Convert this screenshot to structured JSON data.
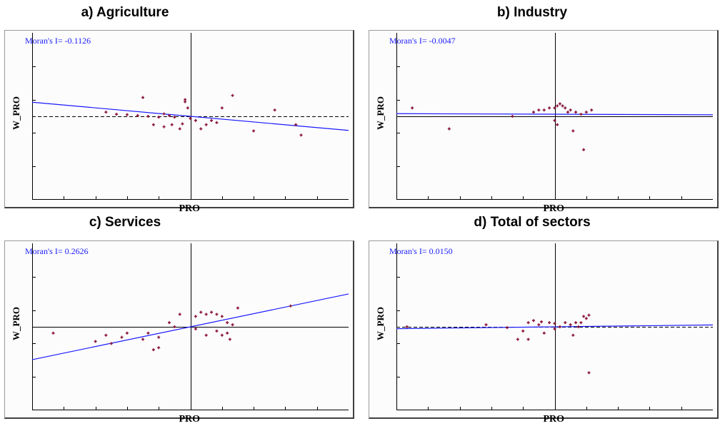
{
  "chart_data": [
    {
      "type": "scatter",
      "title": "a) Agriculture",
      "annotation": "Moran's I= -0.1126",
      "xlabel": "PRO",
      "ylabel": "W_PRO",
      "xlim": [
        -3,
        3
      ],
      "ylim": [
        -2,
        2
      ],
      "moran_i": -0.1126,
      "regression": {
        "slope": -0.1126,
        "intercept": 0
      },
      "points": [
        {
          "x": -1.6,
          "y": 0.1
        },
        {
          "x": -1.4,
          "y": 0.05
        },
        {
          "x": -1.2,
          "y": 0.04
        },
        {
          "x": -1.0,
          "y": 0.02
        },
        {
          "x": -0.9,
          "y": 0.45
        },
        {
          "x": -0.8,
          "y": 0.0
        },
        {
          "x": -0.6,
          "y": -0.02
        },
        {
          "x": -0.5,
          "y": 0.06
        },
        {
          "x": -0.4,
          "y": 0.02
        },
        {
          "x": -0.3,
          "y": -0.02
        },
        {
          "x": -0.7,
          "y": -0.2
        },
        {
          "x": -0.5,
          "y": -0.25
        },
        {
          "x": -0.35,
          "y": -0.2
        },
        {
          "x": -0.2,
          "y": -0.3
        },
        {
          "x": -0.15,
          "y": -0.18
        },
        {
          "x": -0.1,
          "y": 0.35
        },
        {
          "x": -0.1,
          "y": 0.4
        },
        {
          "x": -0.05,
          "y": 0.2
        },
        {
          "x": 0.1,
          "y": -0.1
        },
        {
          "x": 0.2,
          "y": -0.3
        },
        {
          "x": 0.3,
          "y": -0.2
        },
        {
          "x": 0.4,
          "y": -0.1
        },
        {
          "x": 0.5,
          "y": -0.15
        },
        {
          "x": 0.6,
          "y": 0.2
        },
        {
          "x": 0.8,
          "y": 0.5
        },
        {
          "x": 1.2,
          "y": -0.35
        },
        {
          "x": 1.6,
          "y": 0.15
        },
        {
          "x": 2.0,
          "y": -0.2
        },
        {
          "x": 2.1,
          "y": -0.45
        },
        {
          "x": 0.0,
          "y": -0.05
        }
      ]
    },
    {
      "type": "scatter",
      "title": "b) Industry",
      "annotation": "Moran's I= -0.0047",
      "xlabel": "PRO",
      "ylabel": "W_PRO",
      "xlim": [
        -3,
        3
      ],
      "ylim": [
        -2,
        2
      ],
      "moran_i": -0.0047,
      "regression": {
        "slope": -0.0047,
        "intercept": 0.05
      },
      "points": [
        {
          "x": -2.7,
          "y": 0.2
        },
        {
          "x": -2.0,
          "y": -0.3
        },
        {
          "x": -0.8,
          "y": 0.0
        },
        {
          "x": -0.4,
          "y": 0.1
        },
        {
          "x": -0.3,
          "y": 0.15
        },
        {
          "x": -0.2,
          "y": 0.15
        },
        {
          "x": -0.1,
          "y": 0.2
        },
        {
          "x": 0.0,
          "y": 0.2
        },
        {
          "x": 0.05,
          "y": 0.25
        },
        {
          "x": 0.1,
          "y": 0.3
        },
        {
          "x": 0.15,
          "y": 0.25
        },
        {
          "x": 0.2,
          "y": 0.2
        },
        {
          "x": 0.25,
          "y": 0.1
        },
        {
          "x": 0.3,
          "y": 0.15
        },
        {
          "x": 0.4,
          "y": 0.1
        },
        {
          "x": 0.5,
          "y": 0.05
        },
        {
          "x": 0.6,
          "y": 0.1
        },
        {
          "x": 0.7,
          "y": 0.15
        },
        {
          "x": 0.0,
          "y": -0.1
        },
        {
          "x": 0.05,
          "y": -0.2
        },
        {
          "x": 0.35,
          "y": -0.35
        },
        {
          "x": 0.55,
          "y": -0.8
        }
      ]
    },
    {
      "type": "scatter",
      "title": "c) Services",
      "annotation": "Moran's I= 0.2626",
      "xlabel": "PRO",
      "ylabel": "W_PRO",
      "xlim": [
        -3,
        3
      ],
      "ylim": [
        -2,
        2
      ],
      "moran_i": 0.2626,
      "regression": {
        "slope": 0.2626,
        "intercept": 0
      },
      "points": [
        {
          "x": -2.6,
          "y": -0.15
        },
        {
          "x": -1.8,
          "y": -0.35
        },
        {
          "x": -1.6,
          "y": -0.2
        },
        {
          "x": -1.3,
          "y": -0.25
        },
        {
          "x": -1.5,
          "y": -0.4
        },
        {
          "x": -1.2,
          "y": -0.15
        },
        {
          "x": -0.8,
          "y": -0.15
        },
        {
          "x": -0.6,
          "y": -0.25
        },
        {
          "x": -0.7,
          "y": -0.55
        },
        {
          "x": -0.6,
          "y": -0.5
        },
        {
          "x": -0.9,
          "y": -0.3
        },
        {
          "x": -0.4,
          "y": 0.1
        },
        {
          "x": -0.3,
          "y": 0.0
        },
        {
          "x": -0.2,
          "y": 0.3
        },
        {
          "x": 0.1,
          "y": 0.25
        },
        {
          "x": 0.2,
          "y": 0.35
        },
        {
          "x": 0.3,
          "y": 0.3
        },
        {
          "x": 0.4,
          "y": 0.35
        },
        {
          "x": 0.5,
          "y": 0.3
        },
        {
          "x": 0.6,
          "y": 0.25
        },
        {
          "x": 0.7,
          "y": 0.1
        },
        {
          "x": 0.8,
          "y": 0.05
        },
        {
          "x": 0.9,
          "y": 0.45
        },
        {
          "x": 0.5,
          "y": -0.1
        },
        {
          "x": 0.6,
          "y": -0.2
        },
        {
          "x": 0.7,
          "y": -0.15
        },
        {
          "x": 0.75,
          "y": -0.3
        },
        {
          "x": 0.3,
          "y": -0.2
        },
        {
          "x": 0.1,
          "y": -0.05
        },
        {
          "x": 1.9,
          "y": 0.5
        }
      ]
    },
    {
      "type": "scatter",
      "title": "d) Total of sectors",
      "annotation": "Moran's I= 0.0150",
      "xlabel": "PRO",
      "ylabel": "W_PRO",
      "xlim": [
        -3,
        3
      ],
      "ylim": [
        -2,
        2
      ],
      "moran_i": 0.015,
      "regression": {
        "slope": 0.015,
        "intercept": 0
      },
      "points": [
        {
          "x": -2.8,
          "y": 0.0
        },
        {
          "x": -1.3,
          "y": 0.05
        },
        {
          "x": -0.9,
          "y": -0.02
        },
        {
          "x": -0.5,
          "y": 0.1
        },
        {
          "x": -0.4,
          "y": 0.15
        },
        {
          "x": -0.3,
          "y": 0.05
        },
        {
          "x": -0.25,
          "y": 0.12
        },
        {
          "x": -0.1,
          "y": 0.1
        },
        {
          "x": 0.0,
          "y": 0.08
        },
        {
          "x": 0.1,
          "y": 0.0
        },
        {
          "x": 0.2,
          "y": 0.1
        },
        {
          "x": 0.3,
          "y": 0.05
        },
        {
          "x": 0.4,
          "y": 0.1
        },
        {
          "x": 0.5,
          "y": 0.1
        },
        {
          "x": 0.6,
          "y": 0.2
        },
        {
          "x": 0.65,
          "y": 0.28
        },
        {
          "x": 0.55,
          "y": 0.25
        },
        {
          "x": 0.45,
          "y": 0.0
        },
        {
          "x": -0.6,
          "y": -0.1
        },
        {
          "x": -0.7,
          "y": -0.3
        },
        {
          "x": -0.5,
          "y": -0.3
        },
        {
          "x": -0.2,
          "y": -0.15
        },
        {
          "x": 0.0,
          "y": -0.05
        },
        {
          "x": 0.35,
          "y": -0.2
        },
        {
          "x": 0.65,
          "y": -1.1
        }
      ]
    }
  ]
}
